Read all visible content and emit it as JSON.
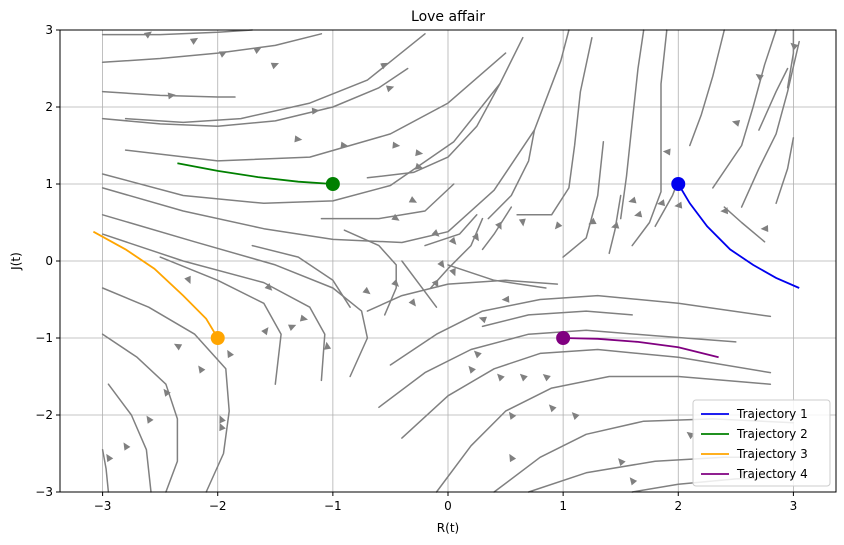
{
  "chart_data": {
    "type": "line",
    "title": "Love affair",
    "xlabel": "R(t)",
    "ylabel": "J(t)",
    "xlim": [
      -3.37,
      3.37
    ],
    "ylim": [
      -3,
      3
    ],
    "xticks": [
      -3,
      -2,
      -1,
      0,
      1,
      2,
      3
    ],
    "yticks": [
      -3,
      -2,
      -1,
      0,
      1,
      2,
      3
    ],
    "xtick_labels": [
      "−3",
      "−2",
      "−1",
      "0",
      "1",
      "2",
      "3"
    ],
    "ytick_labels": [
      "−3",
      "−2",
      "−1",
      "0",
      "1",
      "2",
      "3"
    ],
    "grid": true,
    "legend_position": "lower right",
    "streamline_color": "#808080",
    "streamlines": [
      [
        [
          -3.0,
          2.94
        ],
        [
          -2.5,
          2.94
        ],
        [
          -2.0,
          2.97
        ],
        [
          -1.7,
          3.0
        ]
      ],
      [
        [
          -3.0,
          2.58
        ],
        [
          -2.5,
          2.63
        ],
        [
          -2.0,
          2.7
        ],
        [
          -1.5,
          2.8
        ],
        [
          -1.1,
          2.95
        ]
      ],
      [
        [
          -3.0,
          2.2
        ],
        [
          -2.5,
          2.15
        ],
        [
          -2.0,
          2.13
        ],
        [
          -1.85,
          2.13
        ]
      ],
      [
        [
          -3.0,
          1.85
        ],
        [
          -2.5,
          1.78
        ],
        [
          -2.0,
          1.75
        ],
        [
          -1.5,
          1.82
        ],
        [
          -1.0,
          2.0
        ],
        [
          -0.6,
          2.25
        ],
        [
          -0.35,
          2.5
        ]
      ],
      [
        [
          -2.8,
          1.85
        ],
        [
          -2.3,
          1.8
        ],
        [
          -1.8,
          1.85
        ],
        [
          -1.2,
          2.05
        ],
        [
          -0.7,
          2.35
        ],
        [
          -0.2,
          2.95
        ]
      ],
      [
        [
          -2.8,
          1.44
        ],
        [
          -2.0,
          1.3
        ],
        [
          -1.2,
          1.35
        ],
        [
          -0.5,
          1.65
        ],
        [
          0.0,
          2.05
        ],
        [
          0.5,
          2.7
        ]
      ],
      [
        [
          -3.0,
          1.13
        ],
        [
          -2.3,
          0.85
        ],
        [
          -1.6,
          0.75
        ],
        [
          -1.0,
          0.78
        ],
        [
          -0.5,
          0.98
        ],
        [
          0.05,
          1.55
        ],
        [
          0.45,
          2.3
        ],
        [
          0.65,
          2.9
        ]
      ],
      [
        [
          -3.0,
          0.95
        ],
        [
          -2.3,
          0.65
        ],
        [
          -1.6,
          0.42
        ],
        [
          -1.0,
          0.28
        ],
        [
          -0.4,
          0.24
        ],
        [
          0.0,
          0.38
        ],
        [
          0.4,
          0.92
        ],
        [
          0.75,
          1.7
        ],
        [
          0.98,
          2.6
        ],
        [
          1.05,
          3.0
        ]
      ],
      [
        [
          -3.0,
          0.6
        ],
        [
          -2.2,
          0.25
        ],
        [
          -1.5,
          -0.05
        ],
        [
          -1.0,
          -0.35
        ],
        [
          -0.75,
          -0.65
        ],
        [
          -0.7,
          -1.0
        ],
        [
          -0.85,
          -1.5
        ]
      ],
      [
        [
          -3.0,
          0.35
        ],
        [
          -2.3,
          0.0
        ],
        [
          -1.6,
          -0.28
        ],
        [
          -1.2,
          -0.6
        ],
        [
          -1.07,
          -0.95
        ],
        [
          -1.1,
          -1.55
        ]
      ],
      [
        [
          -3.0,
          -0.35
        ],
        [
          -2.6,
          -0.6
        ],
        [
          -2.2,
          -0.95
        ],
        [
          -1.93,
          -1.4
        ],
        [
          -1.9,
          -1.95
        ],
        [
          -1.95,
          -2.5
        ],
        [
          -2.1,
          -3.0
        ]
      ],
      [
        [
          -3.0,
          -0.95
        ],
        [
          -2.7,
          -1.25
        ],
        [
          -2.45,
          -1.6
        ],
        [
          -2.35,
          -2.05
        ],
        [
          -2.35,
          -2.6
        ],
        [
          -2.45,
          -3.0
        ]
      ],
      [
        [
          -3.0,
          -2.45
        ],
        [
          -2.97,
          -2.7
        ],
        [
          -2.95,
          -3.0
        ]
      ],
      [
        [
          -2.95,
          -1.6
        ],
        [
          -2.75,
          -2.0
        ],
        [
          -2.62,
          -2.45
        ],
        [
          -2.58,
          -3.0
        ]
      ],
      [
        [
          -2.5,
          0.05
        ],
        [
          -2.0,
          -0.25
        ],
        [
          -1.6,
          -0.55
        ],
        [
          -1.45,
          -0.95
        ],
        [
          -1.5,
          -1.6
        ]
      ],
      [
        [
          -1.7,
          0.2
        ],
        [
          -1.3,
          0.05
        ],
        [
          -1.0,
          -0.25
        ],
        [
          -0.85,
          -0.6
        ]
      ],
      [
        [
          -0.9,
          0.4
        ],
        [
          -0.6,
          0.2
        ],
        [
          -0.45,
          -0.05
        ],
        [
          -0.45,
          -0.35
        ],
        [
          -0.55,
          -0.7
        ]
      ],
      [
        [
          -0.7,
          1.08
        ],
        [
          -0.3,
          1.15
        ],
        [
          0.0,
          1.35
        ],
        [
          0.25,
          1.75
        ],
        [
          0.45,
          2.3
        ]
      ],
      [
        [
          -1.1,
          0.55
        ],
        [
          -0.6,
          0.55
        ],
        [
          -0.2,
          0.65
        ],
        [
          0.05,
          1.0
        ]
      ],
      [
        [
          -0.2,
          0.2
        ],
        [
          0.1,
          0.35
        ],
        [
          0.25,
          0.6
        ]
      ],
      [
        [
          -0.4,
          0.0
        ],
        [
          -0.25,
          -0.3
        ],
        [
          -0.1,
          -0.6
        ]
      ],
      [
        [
          -0.15,
          -0.35
        ],
        [
          0.0,
          -0.1
        ],
        [
          0.2,
          0.2
        ],
        [
          0.3,
          0.55
        ]
      ],
      [
        [
          0.3,
          0.15
        ],
        [
          0.4,
          0.35
        ],
        [
          0.55,
          0.7
        ]
      ],
      [
        [
          0.35,
          0.55
        ],
        [
          0.55,
          0.85
        ],
        [
          0.7,
          1.3
        ],
        [
          0.75,
          1.7
        ]
      ],
      [
        [
          -0.7,
          -0.65
        ],
        [
          -0.4,
          -0.45
        ],
        [
          0.0,
          -0.3
        ],
        [
          0.5,
          -0.25
        ],
        [
          0.95,
          -0.3
        ]
      ],
      [
        [
          -0.5,
          -1.35
        ],
        [
          -0.1,
          -0.95
        ],
        [
          0.3,
          -0.65
        ],
        [
          0.8,
          -0.5
        ],
        [
          1.3,
          -0.45
        ],
        [
          2.0,
          -0.55
        ],
        [
          2.8,
          -0.72
        ]
      ],
      [
        [
          -0.6,
          -1.9
        ],
        [
          -0.2,
          -1.45
        ],
        [
          0.2,
          -1.15
        ],
        [
          0.7,
          -0.95
        ],
        [
          1.2,
          -0.9
        ],
        [
          1.8,
          -0.97
        ],
        [
          2.5,
          -1.05
        ]
      ],
      [
        [
          -0.4,
          -2.3
        ],
        [
          0.0,
          -1.75
        ],
        [
          0.4,
          -1.4
        ],
        [
          0.8,
          -1.2
        ],
        [
          1.3,
          -1.15
        ],
        [
          2.0,
          -1.25
        ],
        [
          2.8,
          -1.45
        ]
      ],
      [
        [
          -0.1,
          -3.0
        ],
        [
          0.2,
          -2.4
        ],
        [
          0.5,
          -1.95
        ],
        [
          0.9,
          -1.65
        ],
        [
          1.4,
          -1.5
        ],
        [
          2.0,
          -1.5
        ],
        [
          2.8,
          -1.6
        ]
      ],
      [
        [
          0.4,
          -3.0
        ],
        [
          0.8,
          -2.55
        ],
        [
          1.2,
          -2.25
        ],
        [
          1.7,
          -2.08
        ],
        [
          2.3,
          -2.05
        ],
        [
          3.0,
          -2.1
        ]
      ],
      [
        [
          0.7,
          -3.0
        ],
        [
          1.2,
          -2.75
        ],
        [
          1.8,
          -2.6
        ],
        [
          2.4,
          -2.55
        ],
        [
          3.0,
          -2.55
        ]
      ],
      [
        [
          1.6,
          -3.0
        ],
        [
          2.0,
          -2.9
        ],
        [
          2.5,
          -2.83
        ],
        [
          3.0,
          -2.8
        ]
      ],
      [
        [
          0.3,
          -0.85
        ],
        [
          0.7,
          -0.7
        ],
        [
          1.2,
          -0.65
        ],
        [
          1.6,
          -0.7
        ]
      ],
      [
        [
          0.0,
          -0.05
        ],
        [
          0.4,
          -0.25
        ],
        [
          0.85,
          -0.35
        ]
      ],
      [
        [
          0.6,
          0.6
        ],
        [
          0.9,
          0.6
        ],
        [
          1.05,
          0.95
        ],
        [
          1.1,
          1.5
        ],
        [
          1.15,
          2.2
        ],
        [
          1.25,
          2.9
        ]
      ],
      [
        [
          1.0,
          0.05
        ],
        [
          1.2,
          0.3
        ],
        [
          1.3,
          0.85
        ],
        [
          1.35,
          1.55
        ]
      ],
      [
        [
          1.5,
          0.55
        ],
        [
          1.55,
          1.1
        ],
        [
          1.6,
          1.8
        ],
        [
          1.65,
          2.5
        ],
        [
          1.7,
          3.0
        ]
      ],
      [
        [
          1.4,
          0.1
        ],
        [
          1.45,
          0.4
        ],
        [
          1.5,
          0.85
        ]
      ],
      [
        [
          1.6,
          0.2
        ],
        [
          1.75,
          0.5
        ],
        [
          1.85,
          0.9
        ],
        [
          1.85,
          1.5
        ],
        [
          1.85,
          2.3
        ],
        [
          1.9,
          3.0
        ]
      ],
      [
        [
          1.8,
          0.45
        ],
        [
          1.95,
          0.85
        ],
        [
          2.0,
          1.05
        ]
      ],
      [
        [
          2.1,
          1.5
        ],
        [
          2.2,
          1.9
        ],
        [
          2.3,
          2.4
        ],
        [
          2.4,
          3.0
        ]
      ],
      [
        [
          2.3,
          0.95
        ],
        [
          2.55,
          1.5
        ],
        [
          2.65,
          2.0
        ],
        [
          2.75,
          2.55
        ],
        [
          2.85,
          3.0
        ]
      ],
      [
        [
          2.55,
          0.7
        ],
        [
          2.7,
          1.2
        ],
        [
          2.85,
          1.65
        ],
        [
          2.95,
          2.2
        ],
        [
          3.05,
          2.85
        ]
      ],
      [
        [
          2.85,
          0.75
        ],
        [
          2.95,
          1.2
        ],
        [
          3.0,
          1.6
        ]
      ],
      [
        [
          2.4,
          0.7
        ],
        [
          2.55,
          0.5
        ],
        [
          2.75,
          0.25
        ]
      ],
      [
        [
          2.7,
          1.7
        ],
        [
          2.85,
          2.2
        ],
        [
          2.95,
          2.5
        ]
      ],
      [
        [
          2.95,
          2.25
        ],
        [
          3.0,
          2.7
        ],
        [
          3.0,
          3.0
        ]
      ]
    ],
    "arrow_positions": [
      [
        -2.6,
        2.95
      ],
      [
        -2.2,
        2.87
      ],
      [
        -1.65,
        2.75
      ],
      [
        -2.4,
        2.15
      ],
      [
        -1.95,
        2.7
      ],
      [
        -1.5,
        2.55
      ],
      [
        -0.55,
        2.55
      ],
      [
        -1.15,
        1.95
      ],
      [
        -0.5,
        2.25
      ],
      [
        -1.3,
        1.58
      ],
      [
        -0.9,
        1.5
      ],
      [
        -0.45,
        1.5
      ],
      [
        -0.25,
        1.4
      ],
      [
        -0.25,
        1.22
      ],
      [
        -0.3,
        0.78
      ],
      [
        -0.45,
        0.55
      ],
      [
        -0.1,
        0.35
      ],
      [
        0.05,
        0.25
      ],
      [
        0.25,
        0.3
      ],
      [
        0.45,
        0.45
      ],
      [
        0.65,
        0.5
      ],
      [
        0.95,
        0.45
      ],
      [
        1.25,
        0.5
      ],
      [
        1.45,
        0.45
      ],
      [
        1.6,
        0.78
      ],
      [
        1.65,
        0.6
      ],
      [
        1.85,
        0.75
      ],
      [
        2.0,
        0.72
      ],
      [
        2.4,
        0.65
      ],
      [
        2.75,
        0.42
      ],
      [
        2.5,
        1.8
      ],
      [
        2.7,
        2.4
      ],
      [
        3.0,
        2.8
      ],
      [
        1.9,
        1.42
      ],
      [
        -2.25,
        -0.25
      ],
      [
        -1.55,
        -0.35
      ],
      [
        -1.25,
        -0.75
      ],
      [
        -1.05,
        -1.1
      ],
      [
        -0.7,
        -0.4
      ],
      [
        -0.45,
        -0.3
      ],
      [
        -0.3,
        -0.55
      ],
      [
        -0.1,
        -0.3
      ],
      [
        -0.05,
        -0.05
      ],
      [
        0.05,
        -0.15
      ],
      [
        0.5,
        -0.5
      ],
      [
        0.3,
        -0.75
      ],
      [
        0.25,
        -1.2
      ],
      [
        0.2,
        -1.4
      ],
      [
        0.45,
        -1.5
      ],
      [
        0.65,
        -1.5
      ],
      [
        0.85,
        -1.5
      ],
      [
        0.55,
        -2.0
      ],
      [
        0.9,
        -1.9
      ],
      [
        1.1,
        -2.0
      ],
      [
        0.55,
        -2.55
      ],
      [
        1.5,
        -2.6
      ],
      [
        1.6,
        -2.85
      ],
      [
        2.1,
        -2.25
      ],
      [
        2.55,
        -2.75
      ],
      [
        -2.35,
        -1.1
      ],
      [
        -2.15,
        -1.4
      ],
      [
        -1.97,
        -2.15
      ],
      [
        -1.97,
        -2.05
      ],
      [
        -1.9,
        -1.2
      ],
      [
        -1.58,
        -0.9
      ],
      [
        -1.35,
        -0.85
      ],
      [
        -2.45,
        -1.7
      ],
      [
        -2.6,
        -2.05
      ],
      [
        -2.95,
        -2.55
      ],
      [
        -2.8,
        -2.4
      ]
    ],
    "series": [
      {
        "name": "Trajectory 1",
        "color": "#0000ee",
        "start": [
          2.0,
          1.0
        ],
        "points": [
          [
            2.0,
            1.0
          ],
          [
            2.1,
            0.75
          ],
          [
            2.25,
            0.45
          ],
          [
            2.45,
            0.15
          ],
          [
            2.65,
            -0.05
          ],
          [
            2.85,
            -0.22
          ],
          [
            3.05,
            -0.35
          ]
        ]
      },
      {
        "name": "Trajectory 2",
        "color": "#008000",
        "start": [
          -1.0,
          1.0
        ],
        "points": [
          [
            -1.0,
            1.0
          ],
          [
            -1.3,
            1.03
          ],
          [
            -1.65,
            1.09
          ],
          [
            -2.0,
            1.17
          ],
          [
            -2.35,
            1.27
          ]
        ]
      },
      {
        "name": "Trajectory 3",
        "color": "#ffa500",
        "start": [
          -2.0,
          -1.0
        ],
        "points": [
          [
            -2.0,
            -1.0
          ],
          [
            -2.1,
            -0.75
          ],
          [
            -2.3,
            -0.45
          ],
          [
            -2.55,
            -0.1
          ],
          [
            -2.8,
            0.15
          ],
          [
            -3.08,
            0.38
          ]
        ]
      },
      {
        "name": "Trajectory 4",
        "color": "#800080",
        "start": [
          1.0,
          -1.0
        ],
        "points": [
          [
            1.0,
            -1.0
          ],
          [
            1.3,
            -1.01
          ],
          [
            1.65,
            -1.05
          ],
          [
            2.0,
            -1.12
          ],
          [
            2.35,
            -1.25
          ]
        ]
      }
    ]
  }
}
